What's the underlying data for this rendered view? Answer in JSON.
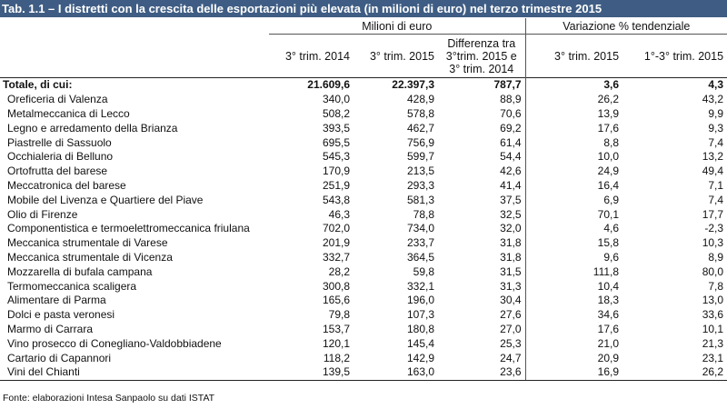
{
  "title": "Tab. 1.1 – I distretti con la crescita delle esportazioni più elevata (in milioni di euro) nel terzo trimestre 2015",
  "header": {
    "group_millions": "Milioni di euro",
    "group_variation": "Variazione % tendenziale",
    "col_2014": "3° trim. 2014",
    "col_2015": "3° trim. 2015",
    "col_diff_l1": "Differenza tra",
    "col_diff_l2": "3°trim. 2015 e",
    "col_diff_l3": "3° trim. 2014",
    "col_var_q3": "3° trim. 2015",
    "col_var_ytd": "1°-3° trim. 2015"
  },
  "rows": [
    {
      "name": "Totale, di cui:",
      "v2014": "21.609,6",
      "v2015": "22.397,3",
      "diff": "787,7",
      "var_q3": "3,6",
      "var_ytd": "4,3"
    },
    {
      "name": "Oreficeria di Valenza",
      "v2014": "340,0",
      "v2015": "428,9",
      "diff": "88,9",
      "var_q3": "26,2",
      "var_ytd": "43,2"
    },
    {
      "name": "Metalmeccanica di Lecco",
      "v2014": "508,2",
      "v2015": "578,8",
      "diff": "70,6",
      "var_q3": "13,9",
      "var_ytd": "9,9"
    },
    {
      "name": "Legno e arredamento della Brianza",
      "v2014": "393,5",
      "v2015": "462,7",
      "diff": "69,2",
      "var_q3": "17,6",
      "var_ytd": "9,3"
    },
    {
      "name": "Piastrelle di Sassuolo",
      "v2014": "695,5",
      "v2015": "756,9",
      "diff": "61,4",
      "var_q3": "8,8",
      "var_ytd": "7,4"
    },
    {
      "name": "Occhialeria di Belluno",
      "v2014": "545,3",
      "v2015": "599,7",
      "diff": "54,4",
      "var_q3": "10,0",
      "var_ytd": "13,2"
    },
    {
      "name": "Ortofrutta del barese",
      "v2014": "170,9",
      "v2015": "213,5",
      "diff": "42,6",
      "var_q3": "24,9",
      "var_ytd": "49,4"
    },
    {
      "name": "Meccatronica del barese",
      "v2014": "251,9",
      "v2015": "293,3",
      "diff": "41,4",
      "var_q3": "16,4",
      "var_ytd": "7,1"
    },
    {
      "name": "Mobile del Livenza e Quartiere del Piave",
      "v2014": "543,8",
      "v2015": "581,3",
      "diff": "37,5",
      "var_q3": "6,9",
      "var_ytd": "7,4"
    },
    {
      "name": "Olio di Firenze",
      "v2014": "46,3",
      "v2015": "78,8",
      "diff": "32,5",
      "var_q3": "70,1",
      "var_ytd": "17,7"
    },
    {
      "name": "Componentistica e termoelettromeccanica friulana",
      "v2014": "702,0",
      "v2015": "734,0",
      "diff": "32,0",
      "var_q3": "4,6",
      "var_ytd": "-2,3"
    },
    {
      "name": "Meccanica strumentale di Varese",
      "v2014": "201,9",
      "v2015": "233,7",
      "diff": "31,8",
      "var_q3": "15,8",
      "var_ytd": "10,3"
    },
    {
      "name": "Meccanica strumentale di Vicenza",
      "v2014": "332,7",
      "v2015": "364,5",
      "diff": "31,8",
      "var_q3": "9,6",
      "var_ytd": "8,9"
    },
    {
      "name": "Mozzarella di bufala campana",
      "v2014": "28,2",
      "v2015": "59,8",
      "diff": "31,5",
      "var_q3": "111,8",
      "var_ytd": "80,0"
    },
    {
      "name": "Termomeccanica scaligera",
      "v2014": "300,8",
      "v2015": "332,1",
      "diff": "31,3",
      "var_q3": "10,4",
      "var_ytd": "7,8"
    },
    {
      "name": "Alimentare di Parma",
      "v2014": "165,6",
      "v2015": "196,0",
      "diff": "30,4",
      "var_q3": "18,3",
      "var_ytd": "13,0"
    },
    {
      "name": "Dolci e pasta veronesi",
      "v2014": "79,8",
      "v2015": "107,3",
      "diff": "27,6",
      "var_q3": "34,6",
      "var_ytd": "33,6"
    },
    {
      "name": "Marmo di Carrara",
      "v2014": "153,7",
      "v2015": "180,8",
      "diff": "27,0",
      "var_q3": "17,6",
      "var_ytd": "10,1"
    },
    {
      "name": "Vino prosecco di Conegliano-Valdobbiadene",
      "v2014": "120,1",
      "v2015": "145,4",
      "diff": "25,3",
      "var_q3": "21,0",
      "var_ytd": "21,3"
    },
    {
      "name": "Cartario di Capannori",
      "v2014": "118,2",
      "v2015": "142,9",
      "diff": "24,7",
      "var_q3": "20,9",
      "var_ytd": "23,1"
    },
    {
      "name": "Vini del Chianti",
      "v2014": "139,5",
      "v2015": "163,0",
      "diff": "23,6",
      "var_q3": "16,9",
      "var_ytd": "26,2"
    }
  ],
  "source": "Fonte: elaborazioni Intesa Sanpaolo su dati ISTAT"
}
